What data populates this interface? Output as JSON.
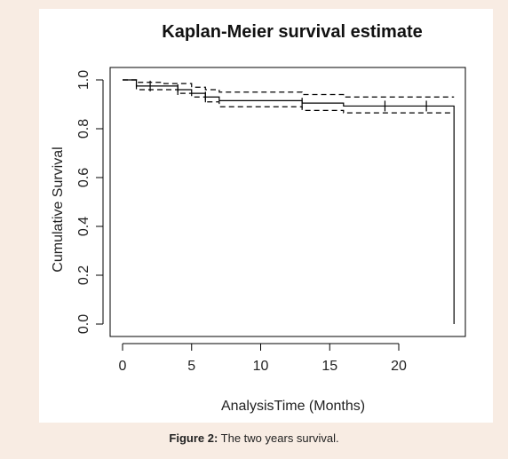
{
  "figure": {
    "caption_label": "Figure 2:",
    "caption_text": " The two years survival."
  },
  "chart_data": {
    "type": "line",
    "title": "Kaplan-Meier survival estimate",
    "xlabel": "AnalysisTime (Months)",
    "ylabel": "Cumulative Survival",
    "xlim": [
      0,
      24.5
    ],
    "ylim": [
      0,
      1.0
    ],
    "x_ticks": [
      0,
      5,
      10,
      15,
      20
    ],
    "x_tick_labels": [
      "0",
      "5",
      "10",
      "15",
      "20"
    ],
    "y_ticks": [
      0,
      0.2,
      0.4,
      0.6,
      0.8,
      1.0
    ],
    "y_tick_labels": [
      "0.0",
      "0.2",
      "0.4",
      "0.6",
      "0.8",
      "1.0"
    ],
    "grid": false,
    "series": [
      {
        "style": "solid",
        "step": true,
        "points": [
          [
            0,
            1.0
          ],
          [
            1,
            0.975
          ],
          [
            4,
            0.96
          ],
          [
            5,
            0.945
          ],
          [
            6,
            0.93
          ],
          [
            7,
            0.915
          ],
          [
            13,
            0.905
          ],
          [
            16,
            0.893
          ],
          [
            24,
            0.893
          ],
          [
            24,
            0.0
          ]
        ],
        "censor_marks": [
          [
            2,
            0.975
          ],
          [
            4,
            0.96
          ],
          [
            6,
            0.93
          ],
          [
            13,
            0.905
          ],
          [
            19,
            0.893
          ],
          [
            22,
            0.893
          ]
        ]
      },
      {
        "style": "dashed",
        "step": true,
        "points": [
          [
            0,
            1.0
          ],
          [
            1,
            0.99
          ],
          [
            3,
            0.985
          ],
          [
            5,
            0.97
          ],
          [
            6,
            0.96
          ],
          [
            7,
            0.95
          ],
          [
            13,
            0.94
          ],
          [
            16,
            0.93
          ],
          [
            24,
            0.93
          ]
        ]
      },
      {
        "style": "dashed",
        "step": true,
        "points": [
          [
            0,
            1.0
          ],
          [
            1,
            0.96
          ],
          [
            4,
            0.945
          ],
          [
            5,
            0.93
          ],
          [
            6,
            0.91
          ],
          [
            7,
            0.89
          ],
          [
            13,
            0.875
          ],
          [
            16,
            0.865
          ],
          [
            24,
            0.865
          ]
        ]
      }
    ],
    "colors": {
      "line": "#000000",
      "background": "#ffffff"
    }
  }
}
